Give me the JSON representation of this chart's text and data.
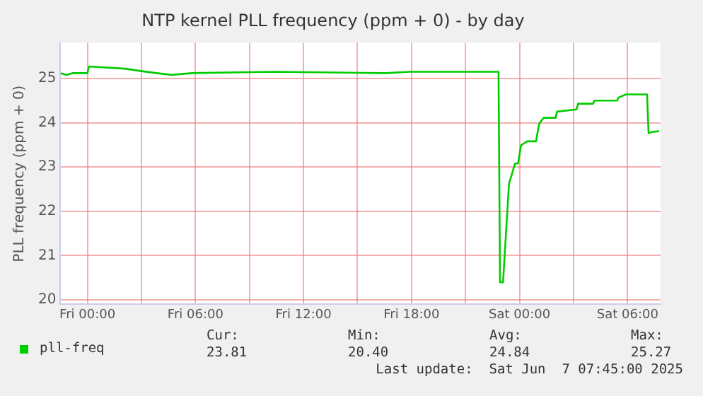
{
  "chart_data": {
    "type": "line",
    "title": "NTP kernel PLL frequency (ppm + 0) - by day",
    "ylabel": "PLL frequency (ppm + 0)",
    "xlim": [
      "2025-06-05T22:30",
      "2025-06-07T07:50"
    ],
    "ylim": [
      19.9,
      25.8
    ],
    "xticks": [
      {
        "value": "2025-06-06T00:00",
        "label": "Fri 00:00"
      },
      {
        "value": "2025-06-06T03:00",
        "label": null
      },
      {
        "value": "2025-06-06T06:00",
        "label": "Fri 06:00"
      },
      {
        "value": "2025-06-06T09:00",
        "label": null
      },
      {
        "value": "2025-06-06T12:00",
        "label": "Fri 12:00"
      },
      {
        "value": "2025-06-06T15:00",
        "label": null
      },
      {
        "value": "2025-06-06T18:00",
        "label": "Fri 18:00"
      },
      {
        "value": "2025-06-06T21:00",
        "label": null
      },
      {
        "value": "2025-06-07T00:00",
        "label": "Sat 00:00"
      },
      {
        "value": "2025-06-07T03:00",
        "label": null
      },
      {
        "value": "2025-06-07T06:00",
        "label": "Sat 06:00"
      }
    ],
    "yticks": [
      20,
      21,
      22,
      23,
      24,
      25
    ],
    "grid": true,
    "legend": "bottom left",
    "marker": "none",
    "line_style": "solid",
    "series": [
      {
        "name": "pll-freq",
        "color": "#00cc00",
        "x": [
          "2025-06-05T22:30",
          "2025-06-05T22:50",
          "2025-06-05T23:10",
          "2025-06-06T00:00",
          "2025-06-06T00:05",
          "2025-06-06T02:05",
          "2025-06-06T03:05",
          "2025-06-06T03:50",
          "2025-06-06T04:40",
          "2025-06-06T05:50",
          "2025-06-06T10:20",
          "2025-06-06T16:35",
          "2025-06-06T17:55",
          "2025-06-06T22:50",
          "2025-06-06T22:55",
          "2025-06-06T23:05",
          "2025-06-06T23:15",
          "2025-06-06T23:25",
          "2025-06-06T23:35",
          "2025-06-06T23:45",
          "2025-06-06T23:55",
          "2025-06-07T00:05",
          "2025-06-07T00:25",
          "2025-06-07T00:55",
          "2025-06-07T01:05",
          "2025-06-07T01:20",
          "2025-06-07T02:00",
          "2025-06-07T02:05",
          "2025-06-07T03:10",
          "2025-06-07T03:15",
          "2025-06-07T04:05",
          "2025-06-07T04:10",
          "2025-06-07T05:25",
          "2025-06-07T05:30",
          "2025-06-07T05:55",
          "2025-06-07T07:05",
          "2025-06-07T07:10",
          "2025-06-07T07:30",
          "2025-06-07T07:45"
        ],
        "values": [
          25.12,
          25.08,
          25.12,
          25.12,
          25.27,
          25.22,
          25.16,
          25.12,
          25.08,
          25.12,
          25.15,
          25.12,
          25.15,
          25.15,
          20.4,
          20.4,
          21.52,
          22.63,
          22.85,
          23.08,
          23.08,
          23.49,
          23.58,
          23.58,
          23.97,
          24.11,
          24.11,
          24.25,
          24.3,
          24.43,
          24.43,
          24.5,
          24.5,
          24.57,
          24.64,
          24.64,
          23.77,
          23.8,
          23.81
        ]
      }
    ],
    "annotations": [
      "Cur:",
      "23.81",
      "Min:",
      "20.40",
      "Avg:",
      "24.84",
      "Max:",
      "25.27",
      "Last update:  Sat Jun  7 07:45:00 2025"
    ]
  }
}
